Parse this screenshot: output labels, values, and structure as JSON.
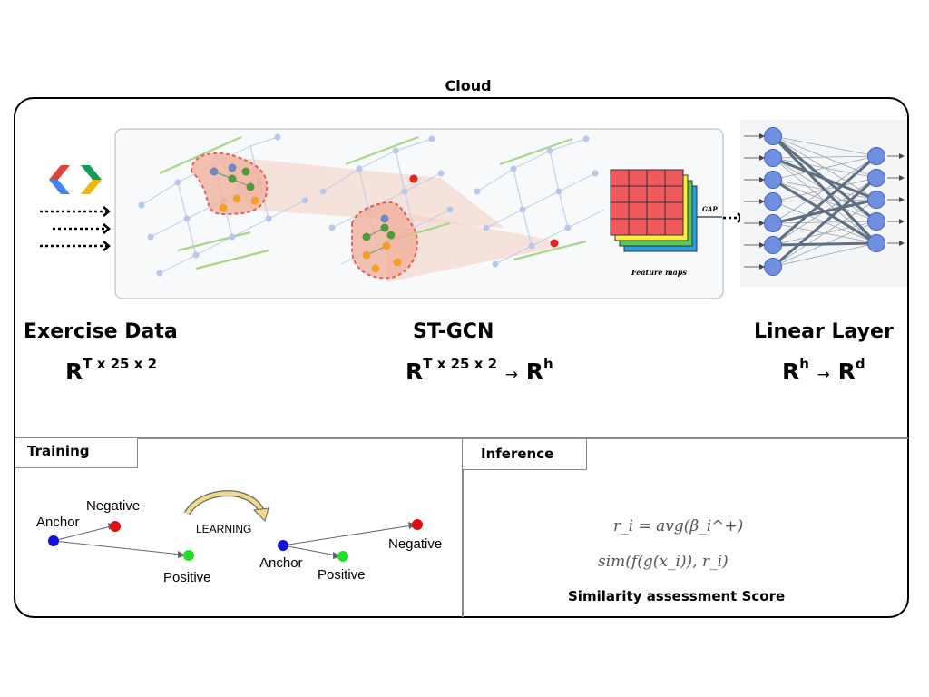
{
  "cloud": {
    "title": "Cloud"
  },
  "stages": {
    "exercise": {
      "title": "Exercise Data",
      "math_base": "R",
      "math_sup": "T x 25 x 2"
    },
    "stgcn": {
      "title": "ST-GCN",
      "math_base": "R",
      "math_sup": "T x 25 x 2",
      "arrow": "→",
      "math_base2": "R",
      "math_sup2": "h"
    },
    "linear": {
      "title": "Linear Layer",
      "math_base": "R",
      "math_sup": "h",
      "arrow": "→",
      "math_base2": "R",
      "math_sup2": "d"
    }
  },
  "pipeline_figure": {
    "gap_label": "GAP",
    "feature_maps_label": "Feature maps"
  },
  "training": {
    "title": "Training",
    "before": {
      "anchor": "Anchor",
      "negative": "Negative",
      "positive": "Positive"
    },
    "learning": "LEARNING",
    "after": {
      "anchor": "Anchor",
      "negative": "Negative",
      "positive": "Positive"
    }
  },
  "inference": {
    "title": "Inference",
    "formula1": "r_i = avg(β_i^+)",
    "formula2": "sim(f(g(x_i)), r_i)",
    "score_label": "Similarity assessment Score"
  },
  "colors": {
    "anchor": "#1010e0",
    "negative": "#e01010",
    "positive": "#22e022",
    "node": "#6f8fd8",
    "grid_red": "#f05a5f",
    "grid_yellow": "#f4ef3a",
    "grid_green": "#58c85a",
    "grid_blue": "#2d9be0"
  },
  "icons": [
    "google-cloud-logo",
    "dotted-arrow-icon",
    "skeleton-graph-icon",
    "feature-maps-icon",
    "neural-net-icon",
    "curved-arrow-icon"
  ]
}
